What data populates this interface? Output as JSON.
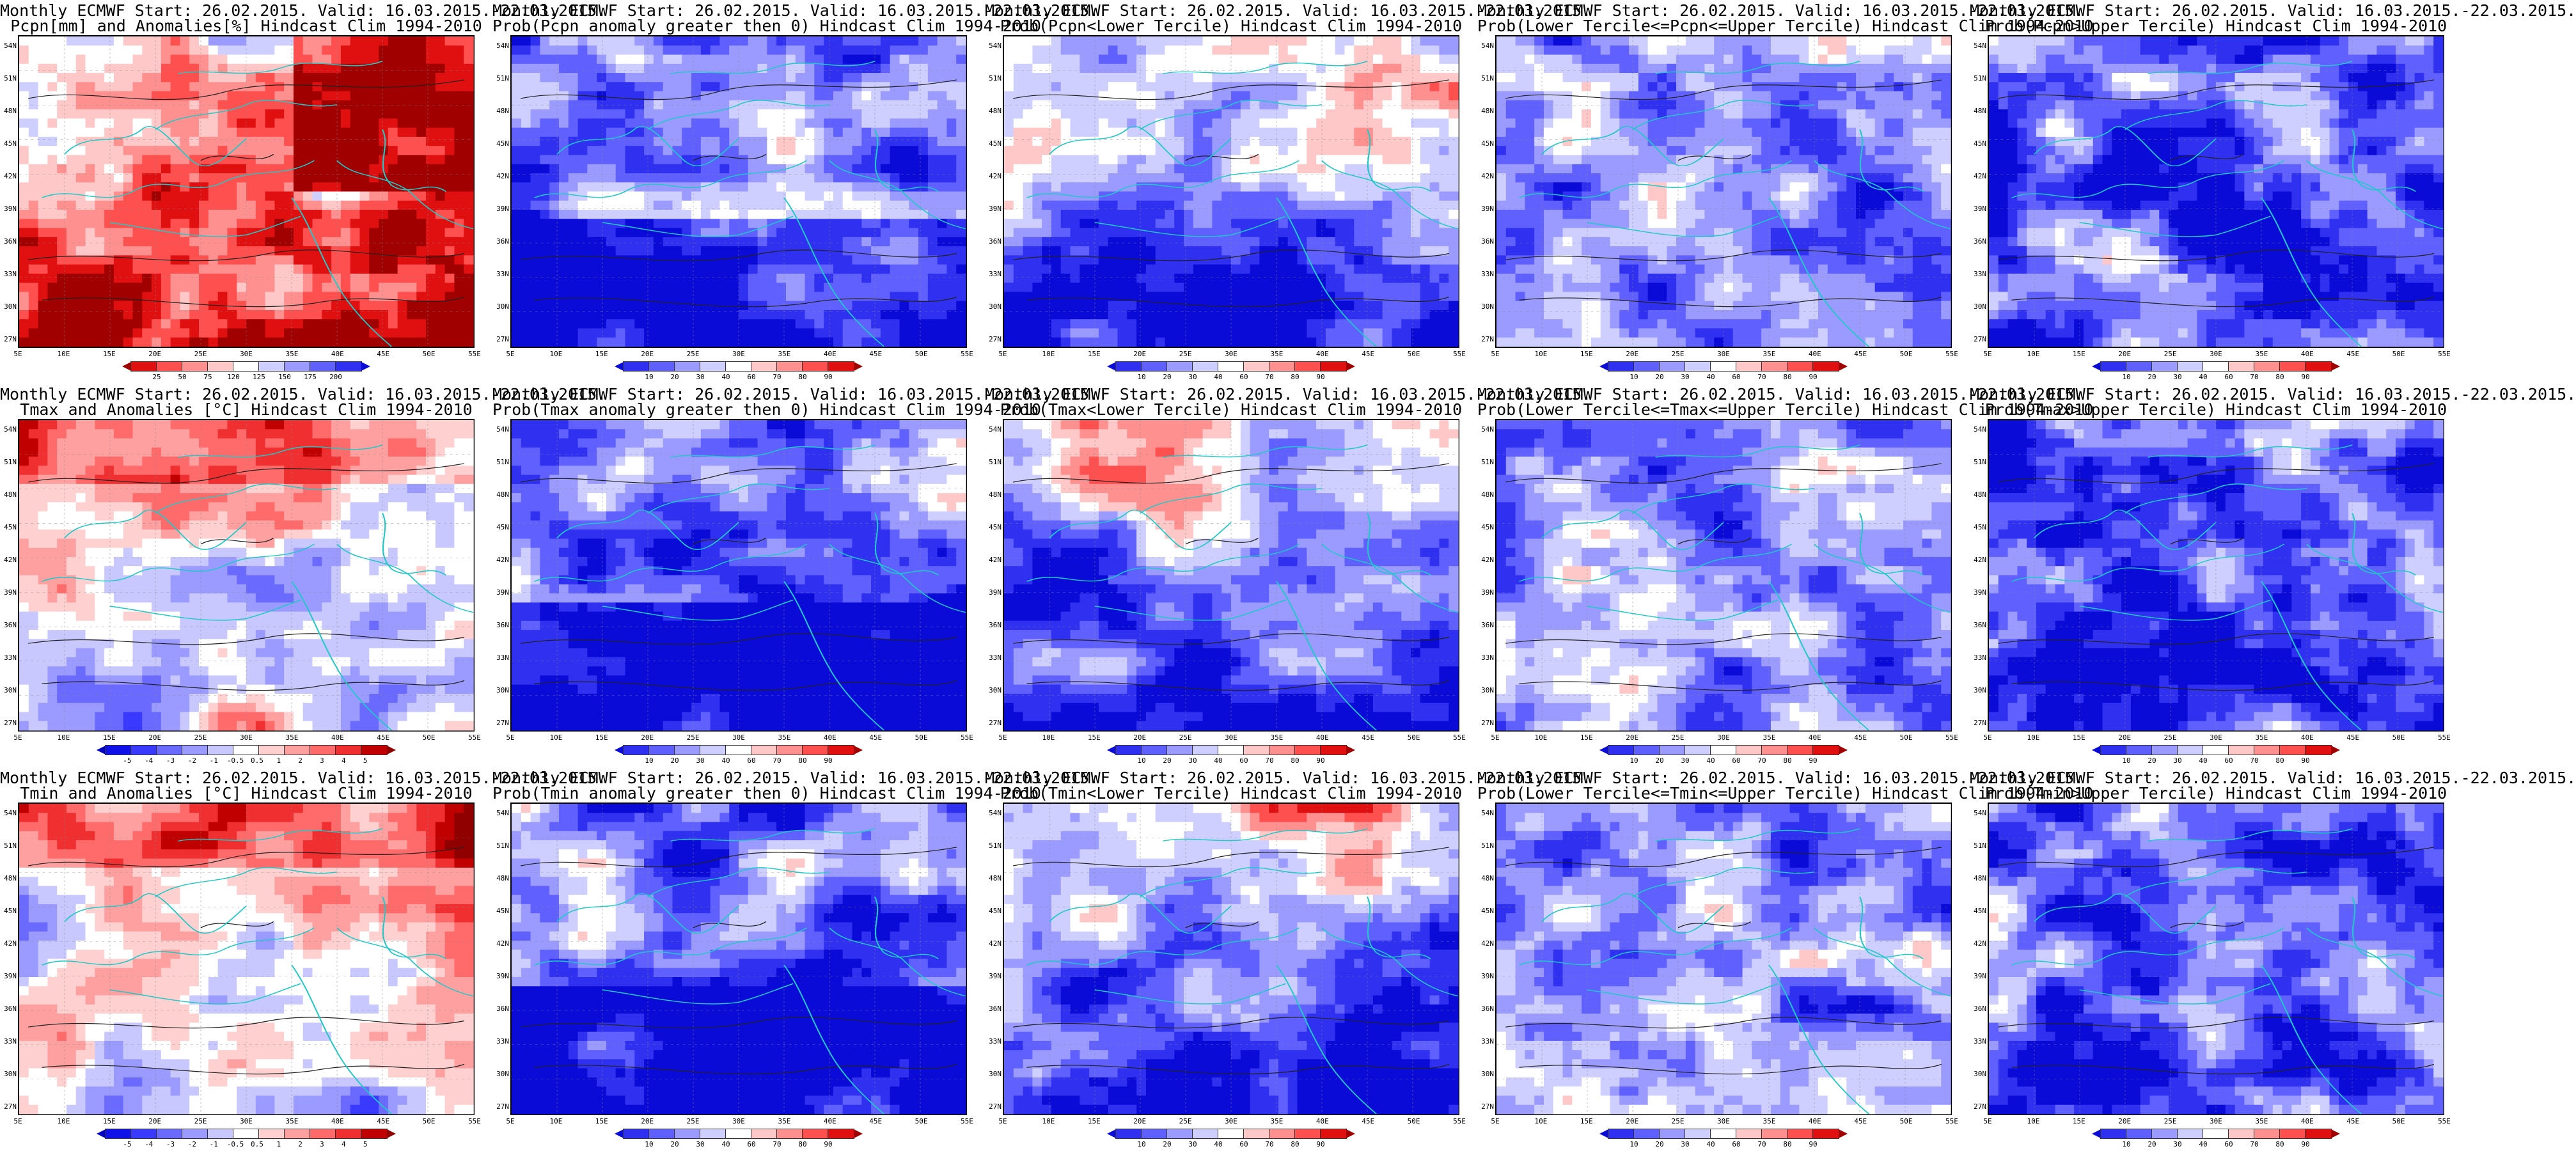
{
  "panels": [
    {
      "line1": "Monthly ECMWF Start: 26.02.2015. Valid: 16.03.2015.-22.03.2015.",
      "line2": "Pcpn[mm] and Anomalies[%] Hindcast Clim 1994-2010",
      "scale": "pcp",
      "field": "pcpn_anom"
    },
    {
      "line1": "Monthly ECMWF Start: 26.02.2015. Valid: 16.03.2015.-22.03.2015.",
      "line2": "Prob(Pcpn anomaly greater then 0) Hindcast Clim 1994-2010",
      "scale": "prob",
      "field": "prob_pos"
    },
    {
      "line1": "Monthly ECMWF Start: 26.02.2015. Valid: 16.03.2015.-22.03.2015.",
      "line2": "Prob(Pcpn<Lower Tercile) Hindcast Clim 1994-2010",
      "scale": "prob",
      "field": "prob_low"
    },
    {
      "line1": "Monthly ECMWF Start: 26.02.2015. Valid: 16.03.2015.-22.03.2015.",
      "line2": "Prob(Lower Tercile<=Pcpn<=Upper Tercile) Hindcast Clim 1994-2010",
      "scale": "prob",
      "field": "prob_mid"
    },
    {
      "line1": "Monthly ECMWF Start: 26.02.2015. Valid: 16.03.2015.-22.03.2015.",
      "line2": "Prob(Pcpn>Upper Tercile) Hindcast Clim 1994-2010",
      "scale": "prob",
      "field": "prob_high"
    },
    {
      "line1": "Monthly ECMWF Start: 26.02.2015. Valid: 16.03.2015.-22.03.2015.",
      "line2": "Tmax and Anomalies [°C] Hindcast Clim 1994-2010",
      "scale": "temp",
      "field": "t_anom"
    },
    {
      "line1": "Monthly ECMWF Start: 26.02.2015. Valid: 16.03.2015.-22.03.2015.",
      "line2": "Prob(Tmax anomaly greater then 0) Hindcast Clim 1994-2010",
      "scale": "prob",
      "field": "prob_pos"
    },
    {
      "line1": "Monthly ECMWF Start: 26.02.2015. Valid: 16.03.2015.-22.03.2015.",
      "line2": "Prob(Tmax<Lower Tercile) Hindcast Clim 1994-2010",
      "scale": "prob",
      "field": "prob_low"
    },
    {
      "line1": "Monthly ECMWF Start: 26.02.2015. Valid: 16.03.2015.-22.03.2015.",
      "line2": "Prob(Lower Tercile<=Tmax<=Upper Tercile) Hindcast Clim 1994-2010",
      "scale": "prob",
      "field": "prob_mid"
    },
    {
      "line1": "Monthly ECMWF Start: 26.02.2015. Valid: 16.03.2015.-22.03.2015.",
      "line2": "Prob(Tmax>Upper Tercile) Hindcast Clim 1994-2010",
      "scale": "prob",
      "field": "prob_high"
    },
    {
      "line1": "Monthly ECMWF Start: 26.02.2015. Valid: 16.03.2015.-22.03.2015.",
      "line2": "Tmin and Anomalies [°C] Hindcast Clim 1994-2010",
      "scale": "temp",
      "field": "t_anom"
    },
    {
      "line1": "Monthly ECMWF Start: 26.02.2015. Valid: 16.03.2015.-22.03.2015.",
      "line2": "Prob(Tmin anomaly greater then 0) Hindcast Clim 1994-2010",
      "scale": "prob",
      "field": "prob_pos"
    },
    {
      "line1": "Monthly ECMWF Start: 26.02.2015. Valid: 16.03.2015.-22.03.2015.",
      "line2": "Prob(Tmin<Lower Tercile) Hindcast Clim 1994-2010",
      "scale": "prob",
      "field": "prob_low"
    },
    {
      "line1": "Monthly ECMWF Start: 26.02.2015. Valid: 16.03.2015.-22.03.2015.",
      "line2": "Prob(Lower Tercile<=Tmin<=Upper Tercile) Hindcast Clim 1994-2010",
      "scale": "prob",
      "field": "prob_mid"
    },
    {
      "line1": "Monthly ECMWF Start: 26.02.2015. Valid: 16.03.2015.-22.03.2015.",
      "line2": "Prob(Tmin>Upper Tercile) Hindcast Clim 1994-2010",
      "scale": "prob",
      "field": "prob_high"
    }
  ],
  "axes": {
    "lat_labels": [
      "54N",
      "51N",
      "48N",
      "45N",
      "42N",
      "39N",
      "36N",
      "33N",
      "30N",
      "27N"
    ],
    "lon_labels": [
      "5E",
      "10E",
      "15E",
      "20E",
      "25E",
      "30E",
      "35E",
      "40E",
      "45E",
      "50E",
      "55E"
    ]
  },
  "scales": {
    "prob": {
      "ticks": [
        "10",
        "20",
        "30",
        "40",
        "60",
        "70",
        "80",
        "90"
      ],
      "colors": [
        "#0b0bd8",
        "#3030f0",
        "#6060ff",
        "#9a9aff",
        "#cfcfff",
        "#ffffff",
        "#ffc8c8",
        "#ff9090",
        "#ff5050",
        "#e01010",
        "#a00000"
      ]
    },
    "temp": {
      "ticks": [
        "-5",
        "-4",
        "-3",
        "-2",
        "-1",
        "-0.5",
        "0.5",
        "1",
        "2",
        "3",
        "4",
        "5"
      ],
      "colors": [
        "#0000c0",
        "#1010e8",
        "#3a3aff",
        "#6a6aff",
        "#9a9aff",
        "#c8c8ff",
        "#ffffff",
        "#ffd0d0",
        "#ffa0a0",
        "#ff6a6a",
        "#f03030",
        "#c00000",
        "#900000"
      ]
    },
    "pcp": {
      "ticks": [
        "25",
        "50",
        "75",
        "120",
        "125",
        "150",
        "175",
        "200"
      ],
      "colors": [
        "#a00000",
        "#e01010",
        "#ff5050",
        "#ff9090",
        "#ffc8c8",
        "#ffffff",
        "#cfcfff",
        "#9a9aff",
        "#6060ff",
        "#3030f0",
        "#0b0bd8"
      ]
    }
  }
}
